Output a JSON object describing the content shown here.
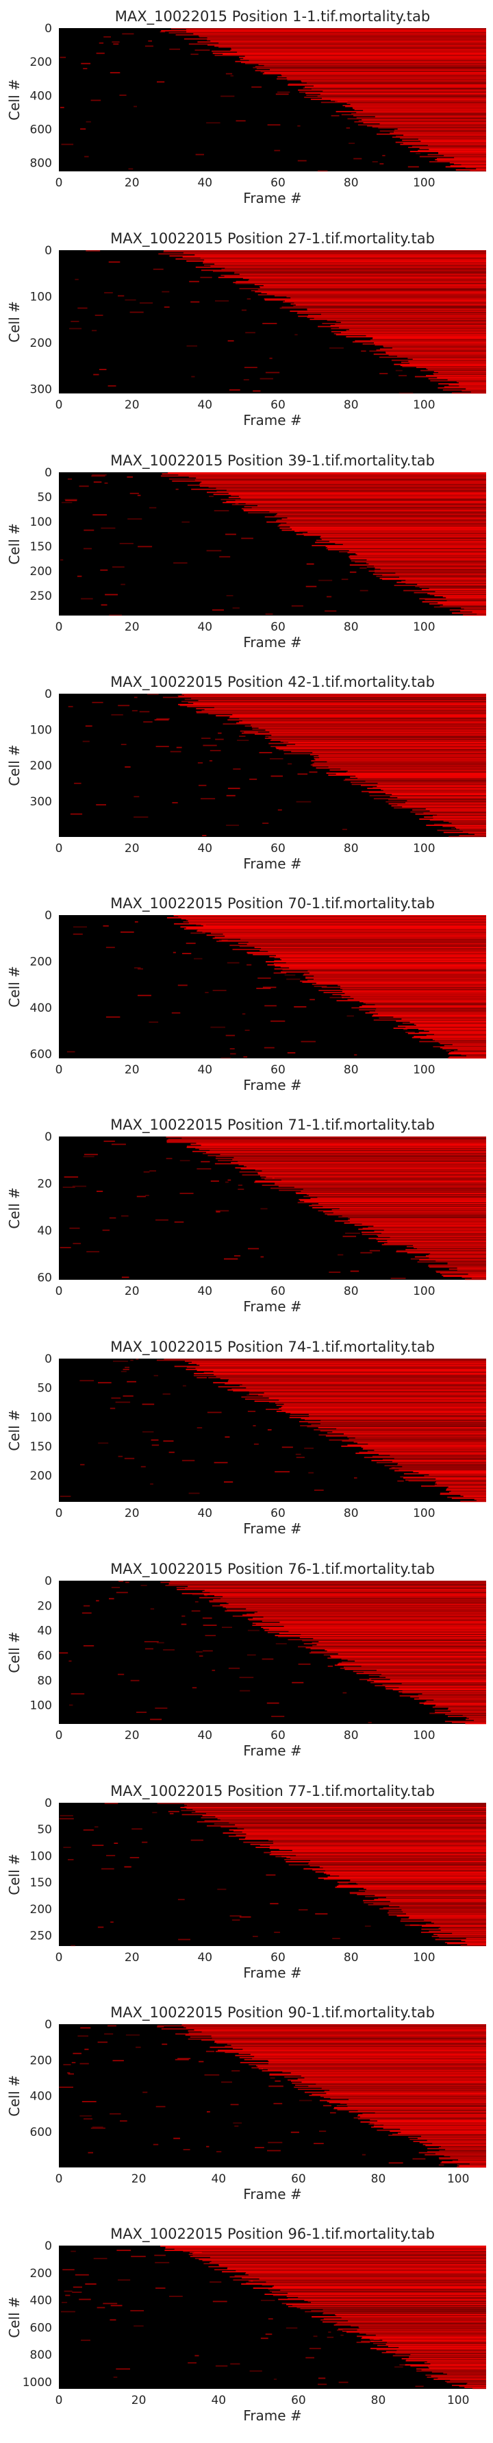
{
  "chart_data": [
    {
      "type": "heatmap",
      "title": "MAX_10022015 Position 1-1.tif.mortality.tab",
      "xlabel": "Frame #",
      "ylabel": "Cell #",
      "xlim": [
        0,
        117
      ],
      "ylim": [
        0,
        850
      ],
      "xticks": [
        0,
        20,
        40,
        60,
        80,
        100
      ],
      "yticks": [
        0,
        200,
        400,
        600,
        800
      ],
      "grid": false,
      "colormap": [
        "#000000",
        "#ff0000"
      ]
    },
    {
      "type": "heatmap",
      "title": "MAX_10022015 Position 27-1.tif.mortality.tab",
      "xlabel": "Frame #",
      "ylabel": "Cell #",
      "xlim": [
        0,
        117
      ],
      "ylim": [
        0,
        310
      ],
      "xticks": [
        0,
        20,
        40,
        60,
        80,
        100
      ],
      "yticks": [
        0,
        100,
        200,
        300
      ],
      "grid": false,
      "colormap": [
        "#000000",
        "#ff0000"
      ]
    },
    {
      "type": "heatmap",
      "title": "MAX_10022015 Position 39-1.tif.mortality.tab",
      "xlabel": "Frame #",
      "ylabel": "Cell #",
      "xlim": [
        0,
        117
      ],
      "ylim": [
        0,
        290
      ],
      "xticks": [
        0,
        20,
        40,
        60,
        80,
        100
      ],
      "yticks": [
        0,
        50,
        100,
        150,
        200,
        250
      ],
      "grid": false,
      "colormap": [
        "#000000",
        "#ff0000"
      ]
    },
    {
      "type": "heatmap",
      "title": "MAX_10022015 Position 42-1.tif.mortality.tab",
      "xlabel": "Frame #",
      "ylabel": "Cell #",
      "xlim": [
        0,
        117
      ],
      "ylim": [
        0,
        400
      ],
      "xticks": [
        0,
        20,
        40,
        60,
        80,
        100
      ],
      "yticks": [
        0,
        100,
        200,
        300
      ],
      "grid": false,
      "colormap": [
        "#000000",
        "#ff0000"
      ]
    },
    {
      "type": "heatmap",
      "title": "MAX_10022015 Position 70-1.tif.mortality.tab",
      "xlabel": "Frame #",
      "ylabel": "Cell #",
      "xlim": [
        0,
        117
      ],
      "ylim": [
        0,
        620
      ],
      "xticks": [
        0,
        20,
        40,
        60,
        80,
        100
      ],
      "yticks": [
        0,
        200,
        400,
        600
      ],
      "grid": false,
      "colormap": [
        "#000000",
        "#ff0000"
      ]
    },
    {
      "type": "heatmap",
      "title": "MAX_10022015 Position 71-1.tif.mortality.tab",
      "xlabel": "Frame #",
      "ylabel": "Cell #",
      "xlim": [
        0,
        117
      ],
      "ylim": [
        0,
        61
      ],
      "xticks": [
        0,
        20,
        40,
        60,
        80,
        100
      ],
      "yticks": [
        0,
        20,
        40,
        60
      ],
      "grid": false,
      "colormap": [
        "#000000",
        "#ff0000"
      ]
    },
    {
      "type": "heatmap",
      "title": "MAX_10022015 Position 74-1.tif.mortality.tab",
      "xlabel": "Frame #",
      "ylabel": "Cell #",
      "xlim": [
        0,
        117
      ],
      "ylim": [
        0,
        245
      ],
      "xticks": [
        0,
        20,
        40,
        60,
        80,
        100
      ],
      "yticks": [
        0,
        50,
        100,
        150,
        200
      ],
      "grid": false,
      "colormap": [
        "#000000",
        "#ff0000"
      ]
    },
    {
      "type": "heatmap",
      "title": "MAX_10022015 Position 76-1.tif.mortality.tab",
      "xlabel": "Frame #",
      "ylabel": "Cell #",
      "xlim": [
        0,
        117
      ],
      "ylim": [
        0,
        115
      ],
      "xticks": [
        0,
        20,
        40,
        60,
        80,
        100
      ],
      "yticks": [
        0,
        20,
        40,
        60,
        80,
        100
      ],
      "grid": false,
      "colormap": [
        "#000000",
        "#ff0000"
      ]
    },
    {
      "type": "heatmap",
      "title": "MAX_10022015 Position 77-1.tif.mortality.tab",
      "xlabel": "Frame #",
      "ylabel": "Cell #",
      "xlim": [
        0,
        117
      ],
      "ylim": [
        0,
        270
      ],
      "xticks": [
        0,
        20,
        40,
        60,
        80,
        100
      ],
      "yticks": [
        0,
        50,
        100,
        150,
        200,
        250
      ],
      "grid": false,
      "colormap": [
        "#000000",
        "#ff0000"
      ]
    },
    {
      "type": "heatmap",
      "title": "MAX_10022015 Position 90-1.tif.mortality.tab",
      "xlabel": "Frame #",
      "ylabel": "Cell #",
      "xlim": [
        0,
        107
      ],
      "ylim": [
        0,
        800
      ],
      "xticks": [
        0,
        20,
        40,
        60,
        80,
        100
      ],
      "yticks": [
        0,
        200,
        400,
        600
      ],
      "grid": false,
      "colormap": [
        "#000000",
        "#ff0000"
      ]
    },
    {
      "type": "heatmap",
      "title": "MAX_10022015 Position 96-1.tif.mortality.tab",
      "xlabel": "Frame #",
      "ylabel": "Cell #",
      "xlim": [
        0,
        107
      ],
      "ylim": [
        0,
        1050
      ],
      "xticks": [
        0,
        20,
        40,
        60,
        80,
        100
      ],
      "yticks": [
        0,
        200,
        400,
        600,
        800,
        1000
      ],
      "grid": false,
      "colormap": [
        "#000000",
        "#ff0000"
      ]
    }
  ]
}
